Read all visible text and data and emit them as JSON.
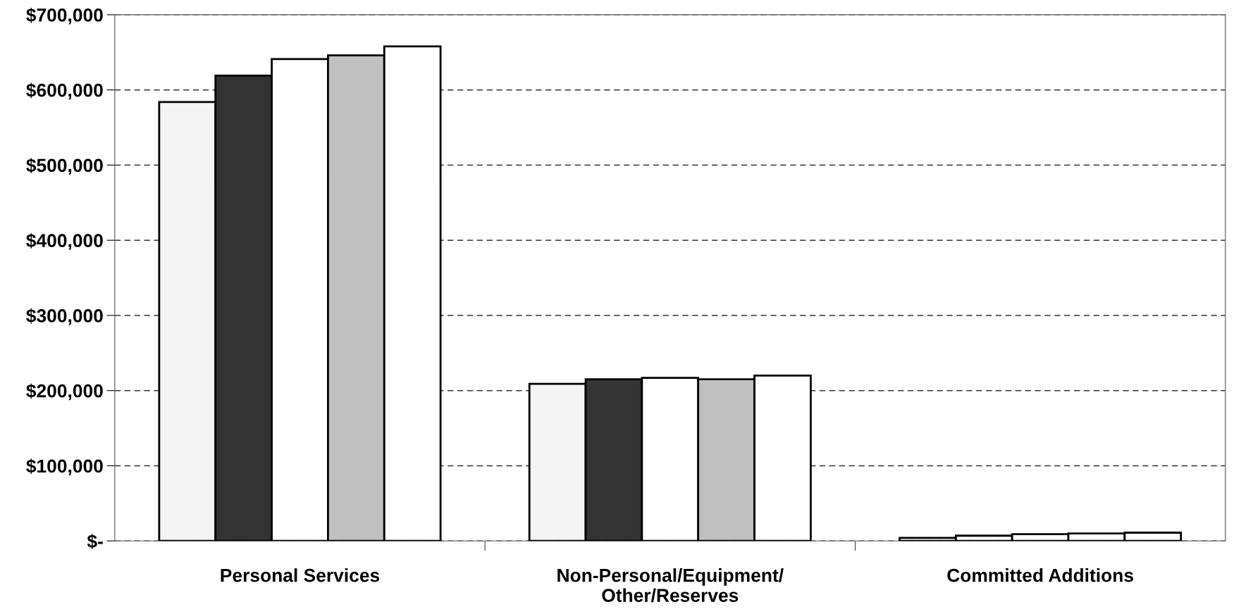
{
  "chart_data": {
    "type": "bar",
    "categories": [
      "Personal Services",
      "Non-Personal/Equipment/\nOther/Reserves",
      "Committed Additions"
    ],
    "series": [
      {
        "color": "#f4f4f4",
        "colors": [
          "#f4f4f4",
          "#f4f4f4",
          "#ffffff"
        ],
        "values": [
          584000,
          209000,
          4000
        ]
      },
      {
        "color": "#333333",
        "colors": [
          "#333333",
          "#333333",
          "#ffffff"
        ],
        "values": [
          619000,
          215000,
          7000
        ]
      },
      {
        "color": "#ffffff",
        "values": [
          641000,
          217000,
          9000
        ]
      },
      {
        "color": "#c0c0c0",
        "colors": [
          "#c0c0c0",
          "#c0c0c0",
          "#ffffff"
        ],
        "values": [
          646000,
          215000,
          10000
        ]
      },
      {
        "color": "#ffffff",
        "values": [
          658000,
          220000,
          11000
        ]
      }
    ],
    "ylim": [
      0,
      700000
    ],
    "yticks": [
      {
        "value": 0,
        "label": "$-"
      },
      {
        "value": 100000,
        "label": "$100,000"
      },
      {
        "value": 200000,
        "label": "$200,000"
      },
      {
        "value": 300000,
        "label": "$300,000"
      },
      {
        "value": 400000,
        "label": "$400,000"
      },
      {
        "value": 500000,
        "label": "$500,000"
      },
      {
        "value": 600000,
        "label": "$600,000"
      },
      {
        "value": 700000,
        "label": "$700,000"
      }
    ],
    "grid": "y",
    "line_style": "dashed",
    "legend": false
  }
}
